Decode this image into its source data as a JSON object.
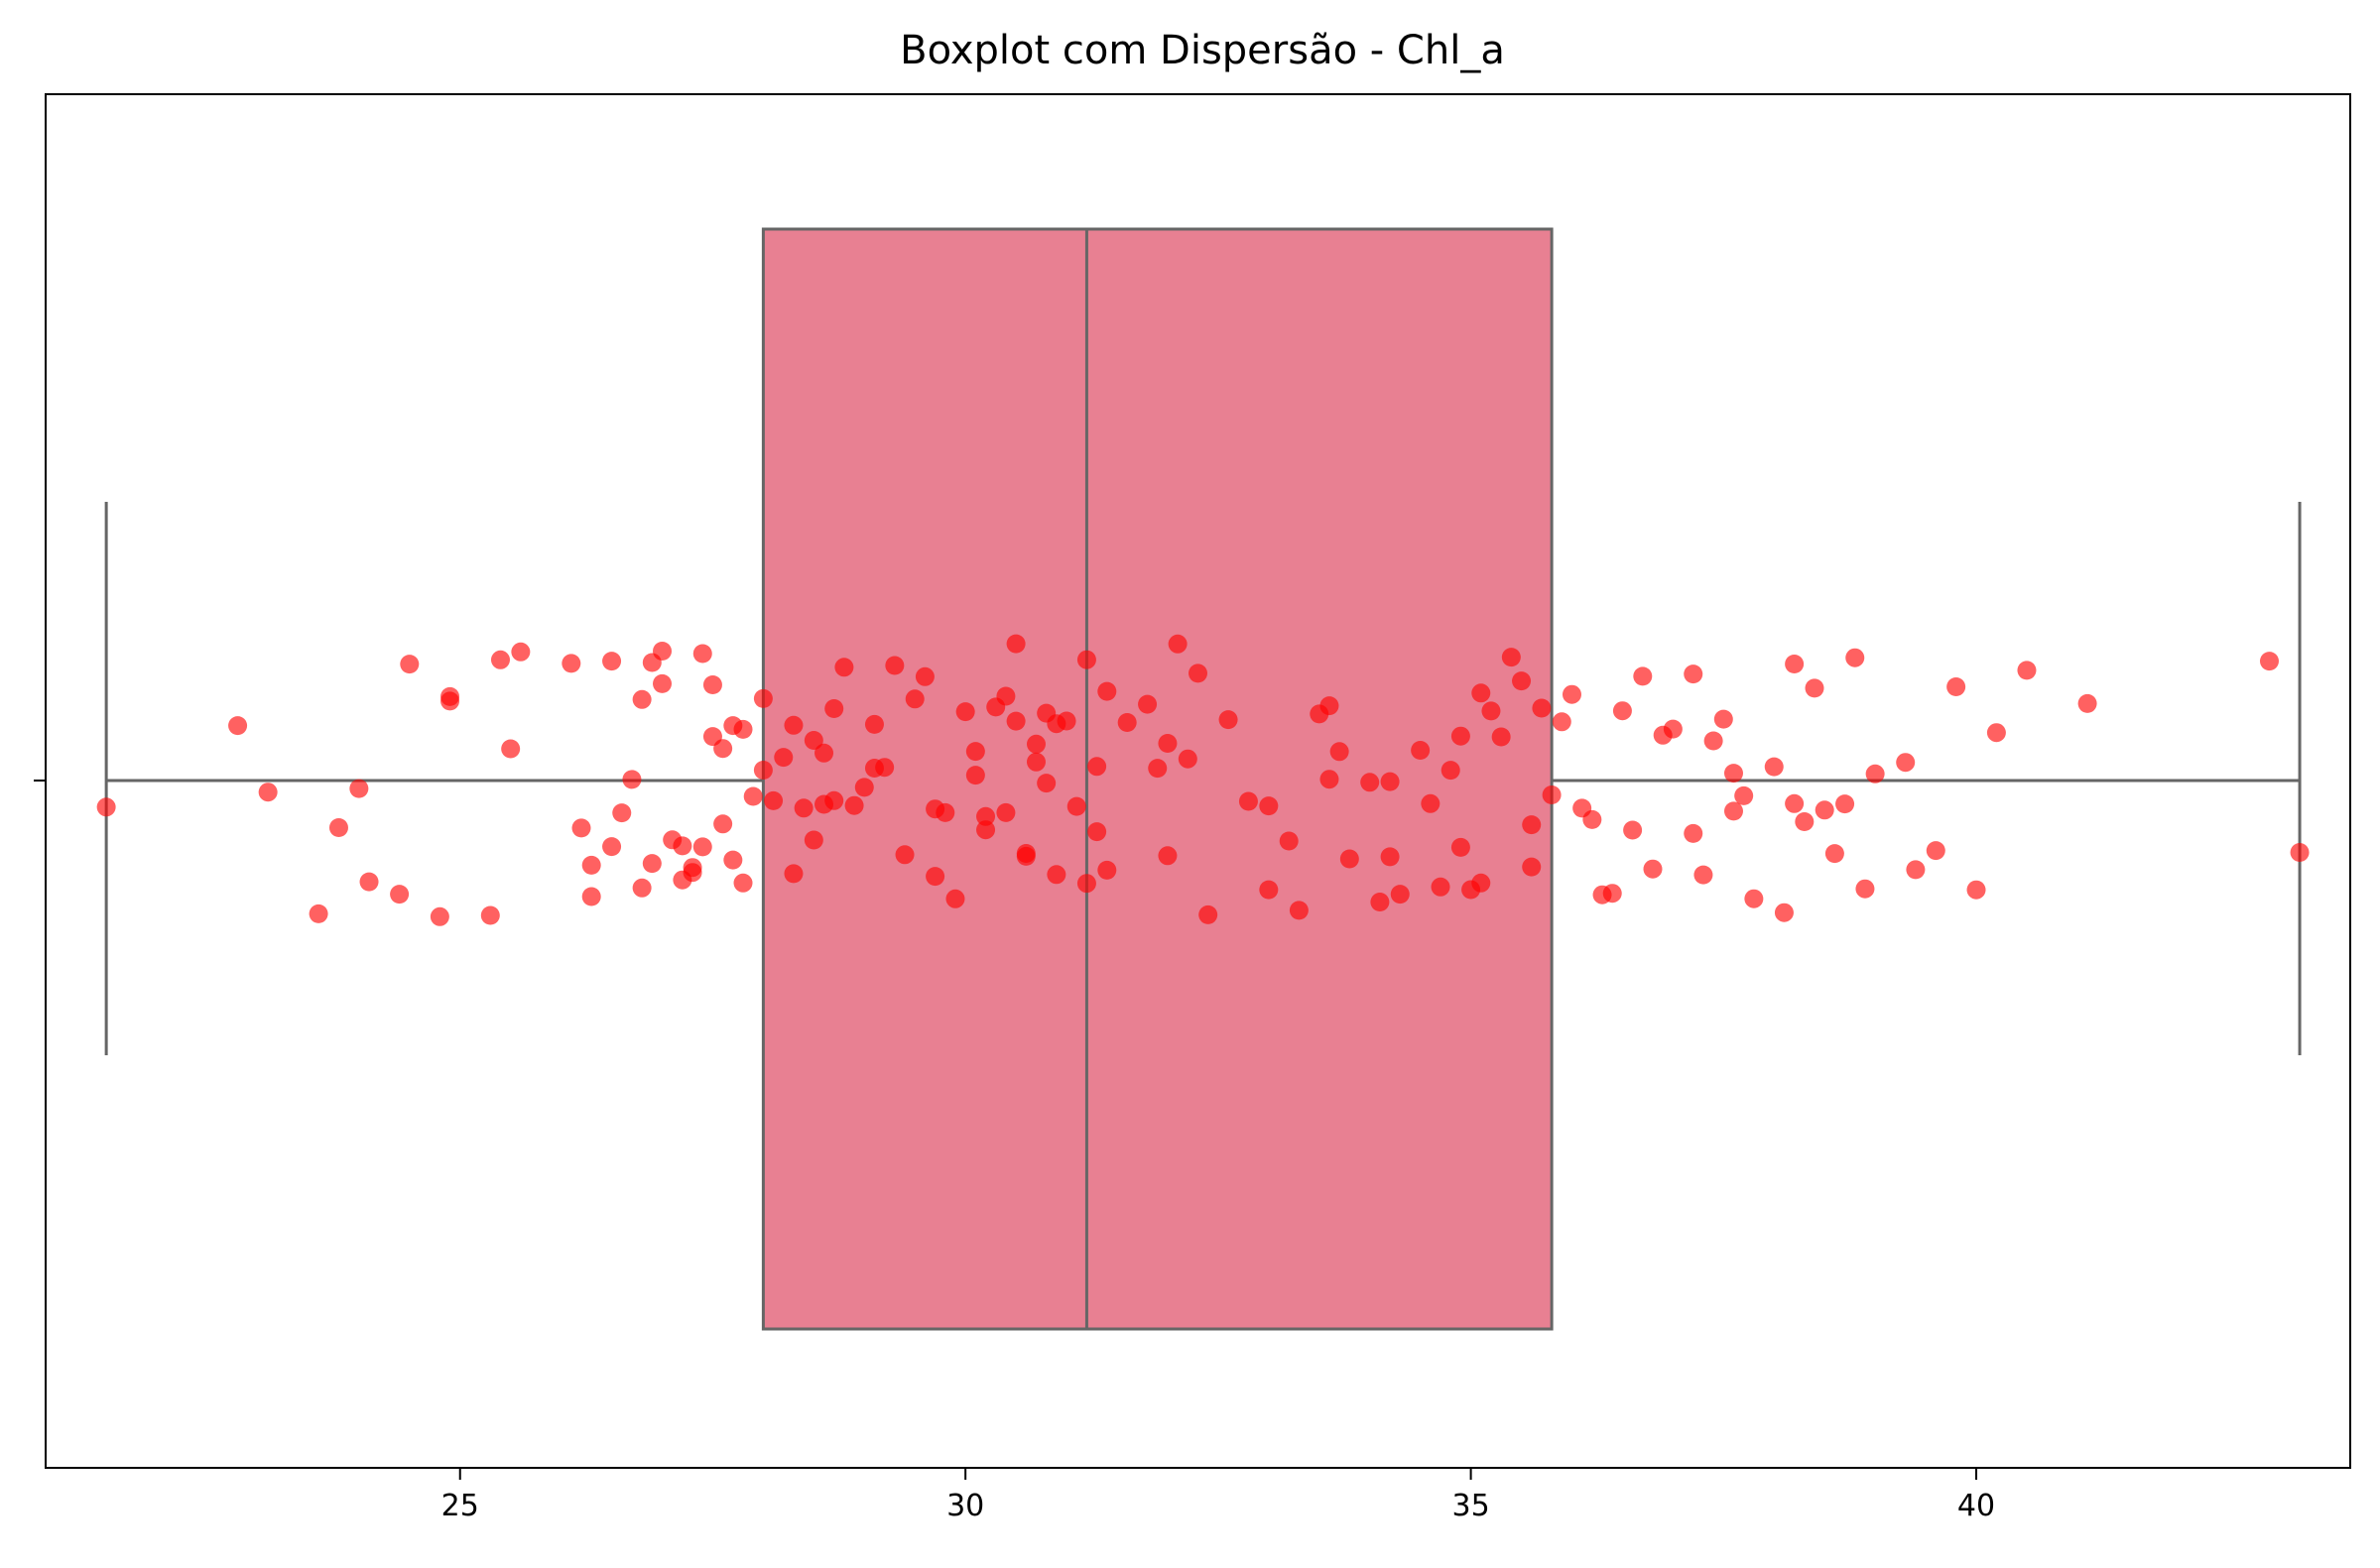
{
  "chart_data": {
    "type": "boxplot",
    "title": "Boxplot com Dispersão - Chl_a",
    "xlabel": "",
    "ylabel": "",
    "xlim": [
      20.9,
      43.7
    ],
    "xticks": [
      25,
      30,
      35,
      40
    ],
    "grid": false,
    "legend": "none",
    "box": {
      "whisker_low": 21.5,
      "q1": 28.0,
      "median": 31.2,
      "q3": 35.8,
      "whisker_high": 43.2,
      "fill_color": "#e88092",
      "line_color": "#666666"
    },
    "scatter": {
      "color": "#ff0000",
      "values": [
        21.5,
        22.8,
        23.1,
        23.6,
        23.8,
        24.0,
        24.1,
        24.4,
        24.5,
        24.8,
        24.9,
        24.9,
        25.3,
        25.4,
        25.5,
        25.6,
        26.1,
        26.2,
        26.3,
        26.3,
        26.5,
        26.5,
        26.6,
        26.7,
        26.8,
        26.8,
        26.9,
        26.9,
        27.0,
        27.0,
        27.1,
        27.2,
        27.2,
        27.3,
        27.3,
        27.4,
        27.4,
        27.5,
        27.5,
        27.6,
        27.6,
        27.7,
        27.7,
        27.8,
        27.8,
        27.9,
        28.0,
        28.0,
        28.1,
        28.2,
        28.3,
        28.3,
        28.4,
        28.5,
        28.5,
        28.6,
        28.6,
        28.7,
        28.7,
        28.8,
        28.9,
        29.0,
        29.1,
        29.1,
        29.2,
        29.3,
        29.4,
        29.5,
        29.6,
        29.7,
        29.7,
        29.8,
        29.9,
        30.0,
        30.1,
        30.1,
        30.2,
        30.2,
        30.3,
        30.4,
        30.4,
        30.5,
        30.5,
        30.6,
        30.6,
        30.7,
        30.7,
        30.8,
        30.8,
        30.9,
        30.9,
        31.0,
        31.1,
        31.2,
        31.2,
        31.3,
        31.3,
        31.4,
        31.4,
        31.6,
        31.8,
        31.9,
        32.0,
        32.0,
        32.1,
        32.2,
        32.3,
        32.4,
        32.6,
        32.8,
        33.0,
        33.0,
        33.2,
        33.3,
        33.5,
        33.6,
        33.6,
        33.7,
        33.8,
        34.0,
        34.1,
        34.2,
        34.2,
        34.3,
        34.5,
        34.6,
        34.7,
        34.8,
        34.9,
        34.9,
        35.0,
        35.1,
        35.1,
        35.2,
        35.3,
        35.4,
        35.5,
        35.6,
        35.6,
        35.7,
        35.8,
        35.9,
        36.0,
        36.1,
        36.2,
        36.3,
        36.4,
        36.5,
        36.6,
        36.7,
        36.8,
        36.9,
        37.0,
        37.2,
        37.2,
        37.3,
        37.4,
        37.5,
        37.6,
        37.6,
        37.7,
        37.8,
        38.0,
        38.1,
        38.2,
        38.2,
        38.3,
        38.4,
        38.5,
        38.6,
        38.7,
        38.8,
        38.9,
        39.0,
        39.3,
        39.4,
        39.6,
        39.8,
        40.0,
        40.2,
        40.5,
        41.1,
        42.9,
        43.2
      ]
    }
  }
}
